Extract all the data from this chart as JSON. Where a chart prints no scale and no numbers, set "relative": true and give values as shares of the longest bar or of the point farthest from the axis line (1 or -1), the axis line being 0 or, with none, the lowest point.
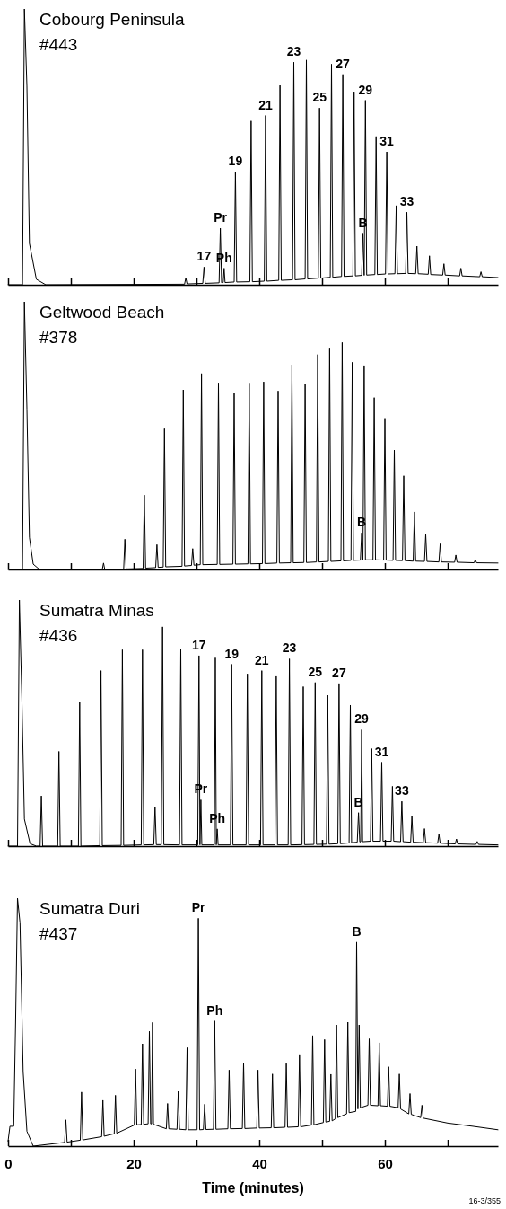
{
  "chart_data": [
    {
      "type": "line",
      "relative": true,
      "title": "Cobourg Peninsula",
      "subtitle": "#443",
      "xlim": [
        0,
        78
      ],
      "xticks": [
        0,
        {
          "value": 10,
          "label": null
        },
        20,
        {
          "value": 30,
          "label": null
        },
        40,
        {
          "value": 50,
          "label": null
        },
        60,
        {
          "value": 70,
          "label": null
        }
      ],
      "tick_labels": false,
      "line_style": "solid",
      "series": [
        {
          "color": "#000000",
          "x": [
            0,
            2.3,
            2.6,
            3.0,
            3.4,
            4.5,
            6,
            28.1,
            28.3,
            28.5,
            31.0,
            31.2,
            31.4,
            33.6,
            33.8,
            34.0,
            34.25,
            34.4,
            34.55,
            36.0,
            36.2,
            36.4,
            38.5,
            38.7,
            38.9,
            40.8,
            41.0,
            41.2,
            43.1,
            43.3,
            43.5,
            45.3,
            45.5,
            45.7,
            47.3,
            47.5,
            47.7,
            49.4,
            49.6,
            49.8,
            51.3,
            51.5,
            51.7,
            53.1,
            53.3,
            53.5,
            54.9,
            55.1,
            55.3,
            56.3,
            56.5,
            56.7,
            56.9,
            57.1,
            58.4,
            58.6,
            58.8,
            60.1,
            60.3,
            60.5,
            61.6,
            61.8,
            62.0,
            63.3,
            63.5,
            63.7,
            64.9,
            65.1,
            65.3,
            66.9,
            67.1,
            67.3,
            69.2,
            69.4,
            69.6,
            71.9,
            72.1,
            72.3,
            75.1,
            75.3,
            75.5,
            78
          ],
          "values": [
            0,
            0,
            1,
            0.72,
            0.15,
            0.02,
            0,
            0.002,
            0.025,
            0.003,
            0.005,
            0.064,
            0.005,
            0.007,
            0.205,
            0.007,
            0.008,
            0.06,
            0.008,
            0.01,
            0.41,
            0.01,
            0.011,
            0.594,
            0.011,
            0.013,
            0.614,
            0.013,
            0.016,
            0.723,
            0.016,
            0.018,
            0.807,
            0.018,
            0.021,
            0.815,
            0.021,
            0.024,
            0.641,
            0.024,
            0.027,
            0.8,
            0.027,
            0.03,
            0.763,
            0.03,
            0.032,
            0.7,
            0.032,
            0.034,
            0.187,
            0.034,
            0.669,
            0.035,
            0.037,
            0.538,
            0.037,
            0.039,
            0.482,
            0.039,
            0.04,
            0.287,
            0.04,
            0.041,
            0.263,
            0.041,
            0.04,
            0.14,
            0.04,
            0.038,
            0.105,
            0.037,
            0.035,
            0.076,
            0.035,
            0.032,
            0.06,
            0.032,
            0.029,
            0.047,
            0.029,
            0.026
          ]
        }
      ],
      "annotations": [
        {
          "text": "17",
          "x": 31.2,
          "y": 0.064
        },
        {
          "text": "Pr",
          "x": 33.8,
          "y": 0.205
        },
        {
          "text": "Ph",
          "x": 34.4,
          "y": 0.06
        },
        {
          "text": "19",
          "x": 36.2,
          "y": 0.41
        },
        {
          "text": "21",
          "x": 41.0,
          "y": 0.614
        },
        {
          "text": "23",
          "x": 45.5,
          "y": 0.807
        },
        {
          "text": "25",
          "x": 49.6,
          "y": 0.641
        },
        {
          "text": "27",
          "x": 53.3,
          "y": 0.763
        },
        {
          "text": "29",
          "x": 56.9,
          "y": 0.669
        },
        {
          "text": "31",
          "x": 60.3,
          "y": 0.482
        },
        {
          "text": "33",
          "x": 63.5,
          "y": 0.263
        },
        {
          "text": "B",
          "x": 56.5,
          "y": 0.187
        }
      ]
    },
    {
      "type": "line",
      "relative": true,
      "title": "Geltwood Beach",
      "subtitle": "#378",
      "xlim": [
        0,
        78
      ],
      "xticks": [
        0,
        {
          "value": 10,
          "label": null
        },
        20,
        {
          "value": 30,
          "label": null
        },
        40,
        {
          "value": 50,
          "label": null
        },
        60,
        {
          "value": 70,
          "label": null
        }
      ],
      "tick_labels": false,
      "line_style": "solid",
      "series": [
        {
          "color": "#000000",
          "x": [
            0,
            2.3,
            2.6,
            3.0,
            3.4,
            4,
            5,
            15.0,
            15.2,
            15.4,
            18.4,
            18.6,
            18.8,
            21.5,
            21.7,
            21.9,
            23.5,
            23.7,
            23.9,
            24.7,
            24.9,
            25.1,
            27.7,
            27.9,
            28.1,
            29.2,
            29.4,
            29.6,
            30.6,
            30.8,
            31.0,
            33.3,
            33.5,
            33.7,
            35.8,
            36.0,
            36.2,
            38.2,
            38.4,
            38.6,
            40.5,
            40.7,
            40.9,
            42.8,
            43.0,
            43.2,
            45.0,
            45.2,
            45.4,
            47.1,
            47.3,
            47.5,
            49.1,
            49.3,
            49.5,
            51.0,
            51.2,
            51.4,
            53.0,
            53.2,
            53.4,
            54.6,
            54.8,
            55.0,
            56.1,
            56.3,
            56.5,
            56.7,
            56.9,
            58.1,
            58.3,
            58.5,
            59.8,
            60.0,
            60.2,
            61.3,
            61.5,
            61.7,
            62.8,
            63.0,
            63.2,
            64.5,
            64.7,
            64.9,
            66.3,
            66.5,
            66.7,
            68.6,
            68.8,
            69.0,
            71.1,
            71.3,
            71.5,
            74.2,
            74.4,
            74.6,
            78
          ],
          "values": [
            0,
            0,
            1,
            0.6,
            0.12,
            0.02,
            0,
            0,
            0.024,
            0,
            0,
            0.113,
            0.002,
            0.004,
            0.278,
            0.005,
            0.007,
            0.093,
            0.008,
            0.009,
            0.526,
            0.01,
            0.012,
            0.671,
            0.013,
            0.015,
            0.078,
            0.016,
            0.018,
            0.732,
            0.018,
            0.019,
            0.697,
            0.019,
            0.02,
            0.66,
            0.02,
            0.021,
            0.697,
            0.021,
            0.022,
            0.701,
            0.022,
            0.024,
            0.667,
            0.024,
            0.025,
            0.765,
            0.025,
            0.026,
            0.693,
            0.026,
            0.028,
            0.803,
            0.028,
            0.03,
            0.828,
            0.03,
            0.032,
            0.848,
            0.032,
            0.034,
            0.774,
            0.034,
            0.035,
            0.137,
            0.036,
            0.762,
            0.036,
            0.036,
            0.642,
            0.036,
            0.035,
            0.565,
            0.035,
            0.034,
            0.446,
            0.034,
            0.033,
            0.35,
            0.033,
            0.031,
            0.215,
            0.031,
            0.03,
            0.131,
            0.03,
            0.028,
            0.096,
            0.028,
            0.027,
            0.054,
            0.027,
            0.025,
            0.036,
            0.025,
            0.024
          ]
        }
      ],
      "annotations": [
        {
          "text": "B",
          "x": 56.3,
          "y": 0.137
        }
      ]
    },
    {
      "type": "line",
      "relative": true,
      "title": "Sumatra Minas",
      "subtitle": "#436",
      "xlim": [
        0,
        78
      ],
      "xticks": [
        0,
        {
          "value": 10,
          "label": null
        },
        20,
        {
          "value": 30,
          "label": null
        },
        40,
        {
          "value": 50,
          "label": null
        },
        60,
        {
          "value": 70,
          "label": null
        }
      ],
      "tick_labels": false,
      "line_style": "solid",
      "series": [
        {
          "color": "#000000",
          "x": [
            0,
            1.5,
            1.8,
            2.2,
            2.6,
            3.5,
            4.5,
            5.1,
            5.3,
            5.5,
            7.9,
            8.1,
            8.3,
            11.2,
            11.4,
            11.6,
            14.6,
            14.8,
            15.0,
            18.0,
            18.2,
            18.4,
            21.2,
            21.4,
            21.6,
            23.2,
            23.4,
            23.6,
            24.4,
            24.6,
            24.8,
            27.3,
            27.5,
            27.7,
            30.2,
            30.4,
            30.55,
            30.7,
            30.85,
            32.85,
            33.0,
            33.15,
            33.3,
            33.45,
            35.4,
            35.6,
            35.8,
            37.9,
            38.1,
            38.3,
            40.2,
            40.4,
            40.6,
            42.5,
            42.7,
            42.9,
            44.6,
            44.8,
            45.0,
            46.8,
            47.0,
            47.2,
            48.7,
            48.9,
            49.1,
            50.7,
            50.9,
            51.1,
            52.5,
            52.7,
            52.9,
            54.3,
            54.5,
            54.7,
            55.6,
            55.8,
            56.0,
            56.15,
            56.3,
            56.45,
            57.7,
            57.9,
            58.1,
            59.3,
            59.5,
            59.7,
            61.0,
            61.2,
            61.4,
            62.5,
            62.7,
            62.9,
            64.1,
            64.3,
            64.5,
            66.1,
            66.3,
            66.5,
            68.4,
            68.6,
            68.8,
            71.2,
            71.4,
            71.6,
            74.5,
            74.7,
            74.9,
            78
          ],
          "values": [
            0,
            0,
            1,
            0.6,
            0.11,
            0.01,
            0,
            0,
            0.204,
            0,
            0,
            0.385,
            0,
            0,
            0.586,
            0,
            0.002,
            0.713,
            0.002,
            0.003,
            0.798,
            0.003,
            0.005,
            0.798,
            0.005,
            0.006,
            0.16,
            0.006,
            0.006,
            0.891,
            0.006,
            0.005,
            0.8,
            0.005,
            0.005,
            0.774,
            0.005,
            0.188,
            0.005,
            0.005,
            0.765,
            0.005,
            0.07,
            0.005,
            0.005,
            0.739,
            0.005,
            0.005,
            0.7,
            0.005,
            0.005,
            0.713,
            0.005,
            0.005,
            0.69,
            0.005,
            0.005,
            0.761,
            0.005,
            0.006,
            0.648,
            0.006,
            0.007,
            0.665,
            0.007,
            0.008,
            0.613,
            0.008,
            0.01,
            0.661,
            0.01,
            0.013,
            0.573,
            0.014,
            0.016,
            0.136,
            0.017,
            0.018,
            0.473,
            0.018,
            0.02,
            0.396,
            0.02,
            0.02,
            0.341,
            0.02,
            0.02,
            0.243,
            0.02,
            0.018,
            0.182,
            0.018,
            0.016,
            0.121,
            0.016,
            0.014,
            0.071,
            0.014,
            0.012,
            0.048,
            0.012,
            0.009,
            0.029,
            0.009,
            0.007,
            0.019,
            0.007,
            0.005
          ]
        }
      ],
      "annotations": [
        {
          "text": "17",
          "x": 30.4,
          "y": 0.774
        },
        {
          "text": "19",
          "x": 35.6,
          "y": 0.739
        },
        {
          "text": "21",
          "x": 40.4,
          "y": 0.713
        },
        {
          "text": "23",
          "x": 44.8,
          "y": 0.761
        },
        {
          "text": "25",
          "x": 48.9,
          "y": 0.665
        },
        {
          "text": "27",
          "x": 52.7,
          "y": 0.661
        },
        {
          "text": "29",
          "x": 56.3,
          "y": 0.473
        },
        {
          "text": "31",
          "x": 59.5,
          "y": 0.341
        },
        {
          "text": "33",
          "x": 62.7,
          "y": 0.182
        },
        {
          "text": "Pr",
          "x": 30.7,
          "y": 0.188
        },
        {
          "text": "Ph",
          "x": 33.3,
          "y": 0.07
        },
        {
          "text": "B",
          "x": 55.8,
          "y": 0.136
        }
      ]
    },
    {
      "type": "line",
      "relative": true,
      "title": "Sumatra Duri",
      "subtitle": "#437",
      "xlabel": "Time (minutes)",
      "xlim": [
        0,
        78
      ],
      "tick_labels": "x",
      "line_style": "solid",
      "xticks": [
        0,
        {
          "value": 10,
          "label": null
        },
        20,
        {
          "value": 30,
          "label": null
        },
        40,
        {
          "value": 50,
          "label": null
        },
        60,
        {
          "value": 70,
          "label": null
        }
      ],
      "series": [
        {
          "color": "#000000",
          "x": [
            0,
            0.3,
            0.9,
            1.2,
            1.5,
            1.9,
            2.4,
            3.0,
            4,
            9.0,
            9.2,
            9.4,
            11.5,
            11.7,
            11.9,
            14.9,
            15.1,
            15.3,
            16.9,
            17.1,
            17.3,
            20.1,
            20.3,
            20.5,
            21.2,
            21.4,
            21.6,
            22.3,
            22.5,
            22.7,
            22.85,
            23.0,
            23.15,
            25.2,
            25.4,
            25.6,
            26.9,
            27.1,
            27.3,
            28.3,
            28.5,
            28.7,
            30.1,
            30.3,
            30.5,
            31.1,
            31.3,
            31.5,
            32.7,
            32.9,
            33.1,
            35.0,
            35.2,
            35.4,
            37.3,
            37.5,
            37.7,
            39.6,
            39.8,
            40.0,
            41.9,
            42.1,
            42.3,
            44.1,
            44.3,
            44.5,
            46.2,
            46.4,
            46.6,
            48.3,
            48.5,
            48.7,
            50.2,
            50.4,
            50.6,
            51.2,
            51.4,
            51.6,
            52.1,
            52.3,
            52.5,
            53.9,
            54.1,
            54.3,
            55.35,
            55.5,
            55.7,
            55.9,
            56.1,
            57.3,
            57.5,
            57.7,
            58.9,
            59.1,
            59.3,
            60.4,
            60.6,
            60.8,
            62.1,
            62.3,
            62.5,
            63.8,
            64.0,
            64.2,
            65.7,
            65.9,
            66.1,
            70,
            74,
            78
          ],
          "values": [
            0.02,
            0.08,
            0.08,
            0.5,
            1,
            0.9,
            0.3,
            0.06,
            0,
            0.015,
            0.106,
            0.016,
            0.024,
            0.218,
            0.025,
            0.038,
            0.185,
            0.04,
            0.05,
            0.205,
            0.052,
            0.085,
            0.311,
            0.086,
            0.087,
            0.413,
            0.088,
            0.09,
            0.463,
            0.09,
            0.09,
            0.499,
            0.088,
            0.07,
            0.172,
            0.07,
            0.068,
            0.221,
            0.068,
            0.066,
            0.397,
            0.066,
            0.066,
            0.919,
            0.066,
            0.067,
            0.169,
            0.067,
            0.068,
            0.505,
            0.068,
            0.07,
            0.307,
            0.07,
            0.071,
            0.335,
            0.071,
            0.073,
            0.307,
            0.073,
            0.074,
            0.291,
            0.074,
            0.076,
            0.333,
            0.076,
            0.078,
            0.37,
            0.078,
            0.085,
            0.446,
            0.086,
            0.095,
            0.43,
            0.097,
            0.1,
            0.29,
            0.102,
            0.11,
            0.489,
            0.115,
            0.13,
            0.5,
            0.135,
            0.14,
            0.823,
            0.15,
            0.489,
            0.155,
            0.165,
            0.433,
            0.165,
            0.163,
            0.417,
            0.163,
            0.161,
            0.32,
            0.161,
            0.155,
            0.291,
            0.15,
            0.13,
            0.212,
            0.128,
            0.115,
            0.165,
            0.113,
            0.093,
            0.08,
            0.066
          ]
        }
      ],
      "annotations": [
        {
          "text": "Pr",
          "x": 30.3,
          "y": 0.919
        },
        {
          "text": "Ph",
          "x": 32.9,
          "y": 0.505
        },
        {
          "text": "B",
          "x": 55.5,
          "y": 0.823
        },
        "16-3/355"
      ]
    }
  ]
}
